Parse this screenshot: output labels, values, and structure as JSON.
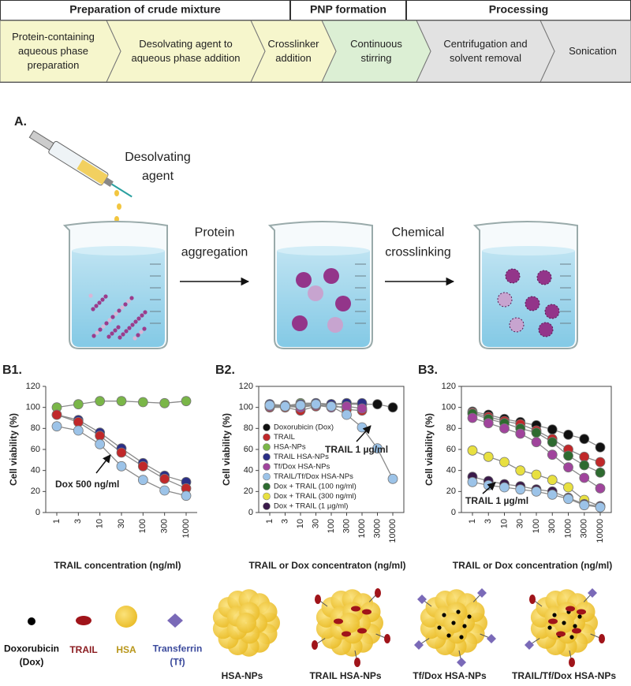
{
  "banner": {
    "stages": [
      "Preparation of crude mixture",
      "PNP formation",
      "Processing"
    ],
    "steps": [
      "Protein-containing aqueous phase preparation",
      "Desolvating agent to aqueous phase addition",
      "Crosslinker addition",
      "Continuous stirring",
      "Centrifugation and solvent removal",
      "Sonication"
    ]
  },
  "panel_a": {
    "label": "A.",
    "reagent": "Desolvating agent",
    "steps": [
      "Protein aggregation",
      "Chemical crosslinking"
    ]
  },
  "chart_data": [
    {
      "type": "line",
      "title": "B1.",
      "x_label": "TRAIL concentration (ng/ml)",
      "y_label": "Cell viability (%)",
      "categories": [
        "1",
        "3",
        "10",
        "30",
        "100",
        "300",
        "1000"
      ],
      "ylim": [
        0,
        120
      ],
      "yticks": [
        0,
        20,
        40,
        60,
        80,
        100,
        120
      ],
      "frame": false,
      "annotation": "Dox 500 ng/ml",
      "series": [
        {
          "color": "#7ab648",
          "values": [
            100,
            103,
            106,
            106,
            105,
            104,
            106
          ]
        },
        {
          "color": "#2b2f86",
          "values": [
            93,
            88,
            76,
            61,
            47,
            35,
            29
          ]
        },
        {
          "color": "#c0282a",
          "values": [
            93,
            86,
            73,
            57,
            44,
            32,
            23
          ]
        },
        {
          "color": "#9cc3e8",
          "values": [
            82,
            78,
            65,
            44,
            31,
            21,
            16
          ]
        }
      ]
    },
    {
      "type": "line",
      "title": "B2.",
      "x_label": "TRAIL or Dox concentraton (ng/ml)",
      "y_label": "Cell viability (%)",
      "categories": [
        "1",
        "3",
        "10",
        "30",
        "100",
        "300",
        "1000",
        "3000",
        "10000"
      ],
      "ylim": [
        0,
        120
      ],
      "yticks": [
        0,
        20,
        40,
        60,
        80,
        100,
        120
      ],
      "frame": true,
      "legend": "left",
      "annotation": "TRAIL 1 µg/ml",
      "series": [
        {
          "name": "Doxorubicin (Dox)",
          "color": "#111111",
          "values": [
            102,
            101,
            101,
            102,
            103,
            103,
            103,
            103,
            100
          ]
        },
        {
          "name": "TRAIL",
          "color": "#c0282a",
          "values": [
            100,
            100,
            97,
            101,
            103,
            98,
            97,
            null,
            null
          ]
        },
        {
          "name": "HSA-NPs",
          "color": "#7ab648",
          "values": [
            103,
            101,
            104,
            104,
            103,
            104,
            null,
            null,
            null
          ]
        },
        {
          "name": "TRAIL HSA-NPs",
          "color": "#2b2f86",
          "values": [
            103,
            102,
            103,
            104,
            103,
            104,
            104,
            null,
            null
          ]
        },
        {
          "name": "Tf/Dox HSA-NPs",
          "color": "#a0449c",
          "values": [
            101,
            101,
            100,
            102,
            100,
            101,
            99,
            null,
            null
          ]
        },
        {
          "name": "TRAIL/Tf/Dox HSA-NPs",
          "color": "#9cc3e8",
          "values": [
            102,
            101,
            102,
            103,
            101,
            93,
            81,
            61,
            32
          ]
        },
        {
          "name": "Dox + TRAIL (100 ng/ml)",
          "color": "#2e6b30",
          "values": [
            null,
            null,
            null,
            null,
            null,
            null,
            null,
            null,
            null
          ]
        },
        {
          "name": "Dox + TRAIL (300 ng/ml)",
          "color": "#e8e040",
          "values": [
            null,
            null,
            null,
            null,
            null,
            null,
            null,
            null,
            null
          ]
        },
        {
          "name": "Dox + TRAIL (1 µg/ml)",
          "color": "#3a1a4a",
          "values": [
            null,
            null,
            null,
            null,
            null,
            null,
            null,
            null,
            null
          ]
        }
      ]
    },
    {
      "type": "line",
      "title": "B3.",
      "x_label": "TRAIL or Dox concentration (ng/ml)",
      "y_label": "Cell viability (%)",
      "categories": [
        "1",
        "3",
        "10",
        "30",
        "100",
        "300",
        "1000",
        "3000",
        "10000"
      ],
      "ylim": [
        0,
        120
      ],
      "yticks": [
        0,
        20,
        40,
        60,
        80,
        100,
        120
      ],
      "frame": true,
      "annotation": "TRAIL 1 µg/ml",
      "series": [
        {
          "color": "#111111",
          "values": [
            96,
            93,
            89,
            86,
            83,
            79,
            74,
            70,
            62
          ]
        },
        {
          "color": "#c0282a",
          "values": [
            95,
            91,
            87,
            84,
            78,
            70,
            60,
            53,
            48
          ]
        },
        {
          "color": "#2e6b30",
          "values": [
            94,
            89,
            85,
            80,
            76,
            67,
            54,
            45,
            38
          ]
        },
        {
          "color": "#a0449c",
          "values": [
            90,
            85,
            80,
            75,
            67,
            55,
            43,
            33,
            23
          ]
        },
        {
          "color": "#e8e040",
          "values": [
            59,
            53,
            48,
            40,
            36,
            31,
            24,
            12,
            6
          ]
        },
        {
          "color": "#3a1a4a",
          "values": [
            34,
            30,
            27,
            25,
            22,
            20,
            14,
            8,
            6
          ]
        },
        {
          "color": "#9cc3e8",
          "values": [
            29,
            26,
            24,
            22,
            20,
            17,
            13,
            7,
            5
          ]
        }
      ]
    }
  ],
  "key": {
    "components": [
      "Doxorubicin (Dox)",
      "TRAIL",
      "HSA",
      "Transferrin (Tf)"
    ],
    "particles": [
      "HSA-NPs",
      "TRAIL HSA-NPs",
      "Tf/Dox HSA-NPs",
      "TRAIL/Tf/Dox HSA-NPs"
    ]
  }
}
